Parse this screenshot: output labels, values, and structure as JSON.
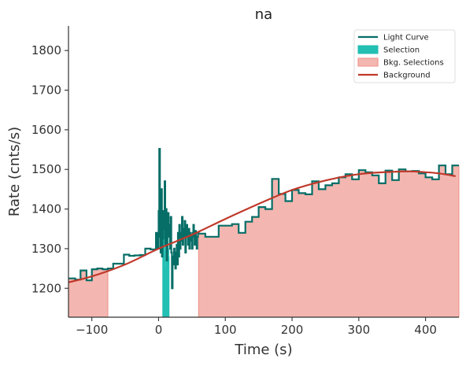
{
  "chart_data": {
    "type": "line",
    "title": "na",
    "xlabel": "Time (s)",
    "ylabel": "Rate (cnts/s)",
    "xlim": [
      -135,
      450
    ],
    "ylim": [
      1127,
      1862
    ],
    "xticks": [
      -100,
      0,
      100,
      200,
      300,
      400
    ],
    "xtick_labels": [
      "−100",
      "0",
      "100",
      "200",
      "300",
      "400"
    ],
    "yticks": [
      1200,
      1300,
      1400,
      1500,
      1600,
      1700,
      1800
    ],
    "ytick_labels": [
      "1200",
      "1300",
      "1400",
      "1500",
      "1600",
      "1700",
      "1800"
    ],
    "grid": false,
    "legend_position": "top-right",
    "colors": {
      "light_curve": "#066e67",
      "selection": "#22bfb3",
      "bkg_selection": "#f4b6b0",
      "bkg_selection_edge": "#ee8f87",
      "background": "#c0392b"
    },
    "legend": [
      {
        "label": "Light Curve",
        "kind": "line",
        "color": "#066e67"
      },
      {
        "label": "Selection",
        "kind": "patch",
        "color": "#22bfb3"
      },
      {
        "label": "Bkg. Selections",
        "kind": "patch",
        "color": "#f4b6b0"
      },
      {
        "label": "Background",
        "kind": "line",
        "color": "#c0392b"
      }
    ],
    "light_curve": {
      "x": [
        -135,
        -125,
        -117,
        -108,
        -100,
        -92,
        -84,
        -76,
        -68,
        -60,
        -52,
        -44,
        -36,
        -28,
        -20,
        -12,
        -4,
        -4,
        -2,
        0,
        1,
        2,
        3,
        4,
        5,
        6,
        7,
        8,
        9,
        10,
        11,
        12,
        13,
        14,
        15,
        16,
        17,
        18,
        19,
        20,
        21,
        22,
        23,
        24,
        25,
        26,
        27,
        28,
        29,
        30,
        31,
        32,
        33,
        34,
        35,
        36,
        37,
        38,
        39,
        40,
        41,
        42,
        43,
        44,
        45,
        46,
        47,
        48,
        49,
        50,
        51,
        52,
        53,
        54,
        55,
        56,
        57,
        58,
        59,
        60,
        60,
        70,
        80,
        90,
        100,
        110,
        120,
        130,
        140,
        150,
        160,
        170,
        180,
        190,
        200,
        210,
        220,
        230,
        240,
        250,
        260,
        270,
        280,
        290,
        300,
        310,
        320,
        330,
        340,
        350,
        360,
        370,
        380,
        390,
        400,
        410,
        420,
        430,
        440,
        450
      ],
      "y": [
        1225,
        1222,
        1245,
        1220,
        1248,
        1250,
        1248,
        1250,
        1262,
        1262,
        1285,
        1282,
        1283,
        1284,
        1300,
        1298,
        1301,
        1340,
        1300,
        1395,
        1552,
        1330,
        1290,
        1450,
        1280,
        1325,
        1395,
        1348,
        1470,
        1310,
        1400,
        1270,
        1350,
        1390,
        1330,
        1360,
        1300,
        1380,
        1290,
        1200,
        1280,
        1260,
        1300,
        1290,
        1250,
        1270,
        1310,
        1260,
        1340,
        1280,
        1360,
        1300,
        1340,
        1320,
        1380,
        1310,
        1350,
        1330,
        1370,
        1290,
        1340,
        1360,
        1330,
        1310,
        1350,
        1300,
        1340,
        1330,
        1320,
        1300,
        1340,
        1360,
        1330,
        1310,
        1345,
        1320,
        1300,
        1330,
        1340,
        1338,
        1338,
        1330,
        1330,
        1358,
        1358,
        1362,
        1340,
        1368,
        1380,
        1405,
        1400,
        1476,
        1438,
        1420,
        1448,
        1440,
        1437,
        1470,
        1450,
        1460,
        1465,
        1480,
        1488,
        1475,
        1498,
        1493,
        1485,
        1465,
        1497,
        1473,
        1500,
        1495,
        1496,
        1490,
        1480,
        1475,
        1510,
        1488,
        1510,
        1510
      ]
    },
    "selection": {
      "x": [
        6,
        6.5,
        7,
        7.5,
        8,
        8.5,
        9,
        9.5,
        10,
        10.5,
        11,
        11.5,
        12,
        12.5,
        13,
        13.5,
        14,
        14.5,
        15,
        15.5,
        16
      ],
      "y": [
        1360,
        1330,
        1300,
        1330,
        1350,
        1280,
        1310,
        1300,
        1250,
        1330,
        1300,
        1280,
        1320,
        1290,
        1310,
        1300,
        1330,
        1290,
        1300,
        1280,
        1270
      ]
    },
    "bkg_selections": [
      {
        "x": [
          -135,
          -125,
          -117,
          -108,
          -100,
          -92,
          -84,
          -76
        ],
        "y": [
          1225,
          1222,
          1245,
          1220,
          1248,
          1250,
          1248,
          1250
        ]
      },
      {
        "x": [
          60,
          70,
          80,
          90,
          100,
          110,
          120,
          130,
          140,
          150,
          160,
          170,
          180,
          190,
          200,
          210,
          220,
          230,
          240,
          250,
          260,
          270,
          280,
          290,
          300,
          310,
          320,
          330,
          340,
          350,
          360,
          370,
          380,
          390,
          400,
          410,
          420,
          430,
          440,
          450
        ],
        "y": [
          1338,
          1330,
          1330,
          1358,
          1358,
          1362,
          1340,
          1368,
          1380,
          1405,
          1400,
          1476,
          1438,
          1420,
          1448,
          1440,
          1437,
          1470,
          1450,
          1460,
          1465,
          1480,
          1488,
          1475,
          1498,
          1493,
          1485,
          1465,
          1497,
          1473,
          1500,
          1495,
          1496,
          1490,
          1480,
          1475,
          1510,
          1488,
          1510,
          1510
        ]
      }
    ],
    "background_model": {
      "x": [
        -135,
        -100,
        -50,
        0,
        50,
        100,
        150,
        200,
        250,
        300,
        350,
        375,
        400,
        420,
        445
      ],
      "y": [
        1215,
        1230,
        1260,
        1300,
        1335,
        1375,
        1413,
        1448,
        1472,
        1488,
        1494,
        1495,
        1493,
        1490,
        1483
      ]
    }
  }
}
